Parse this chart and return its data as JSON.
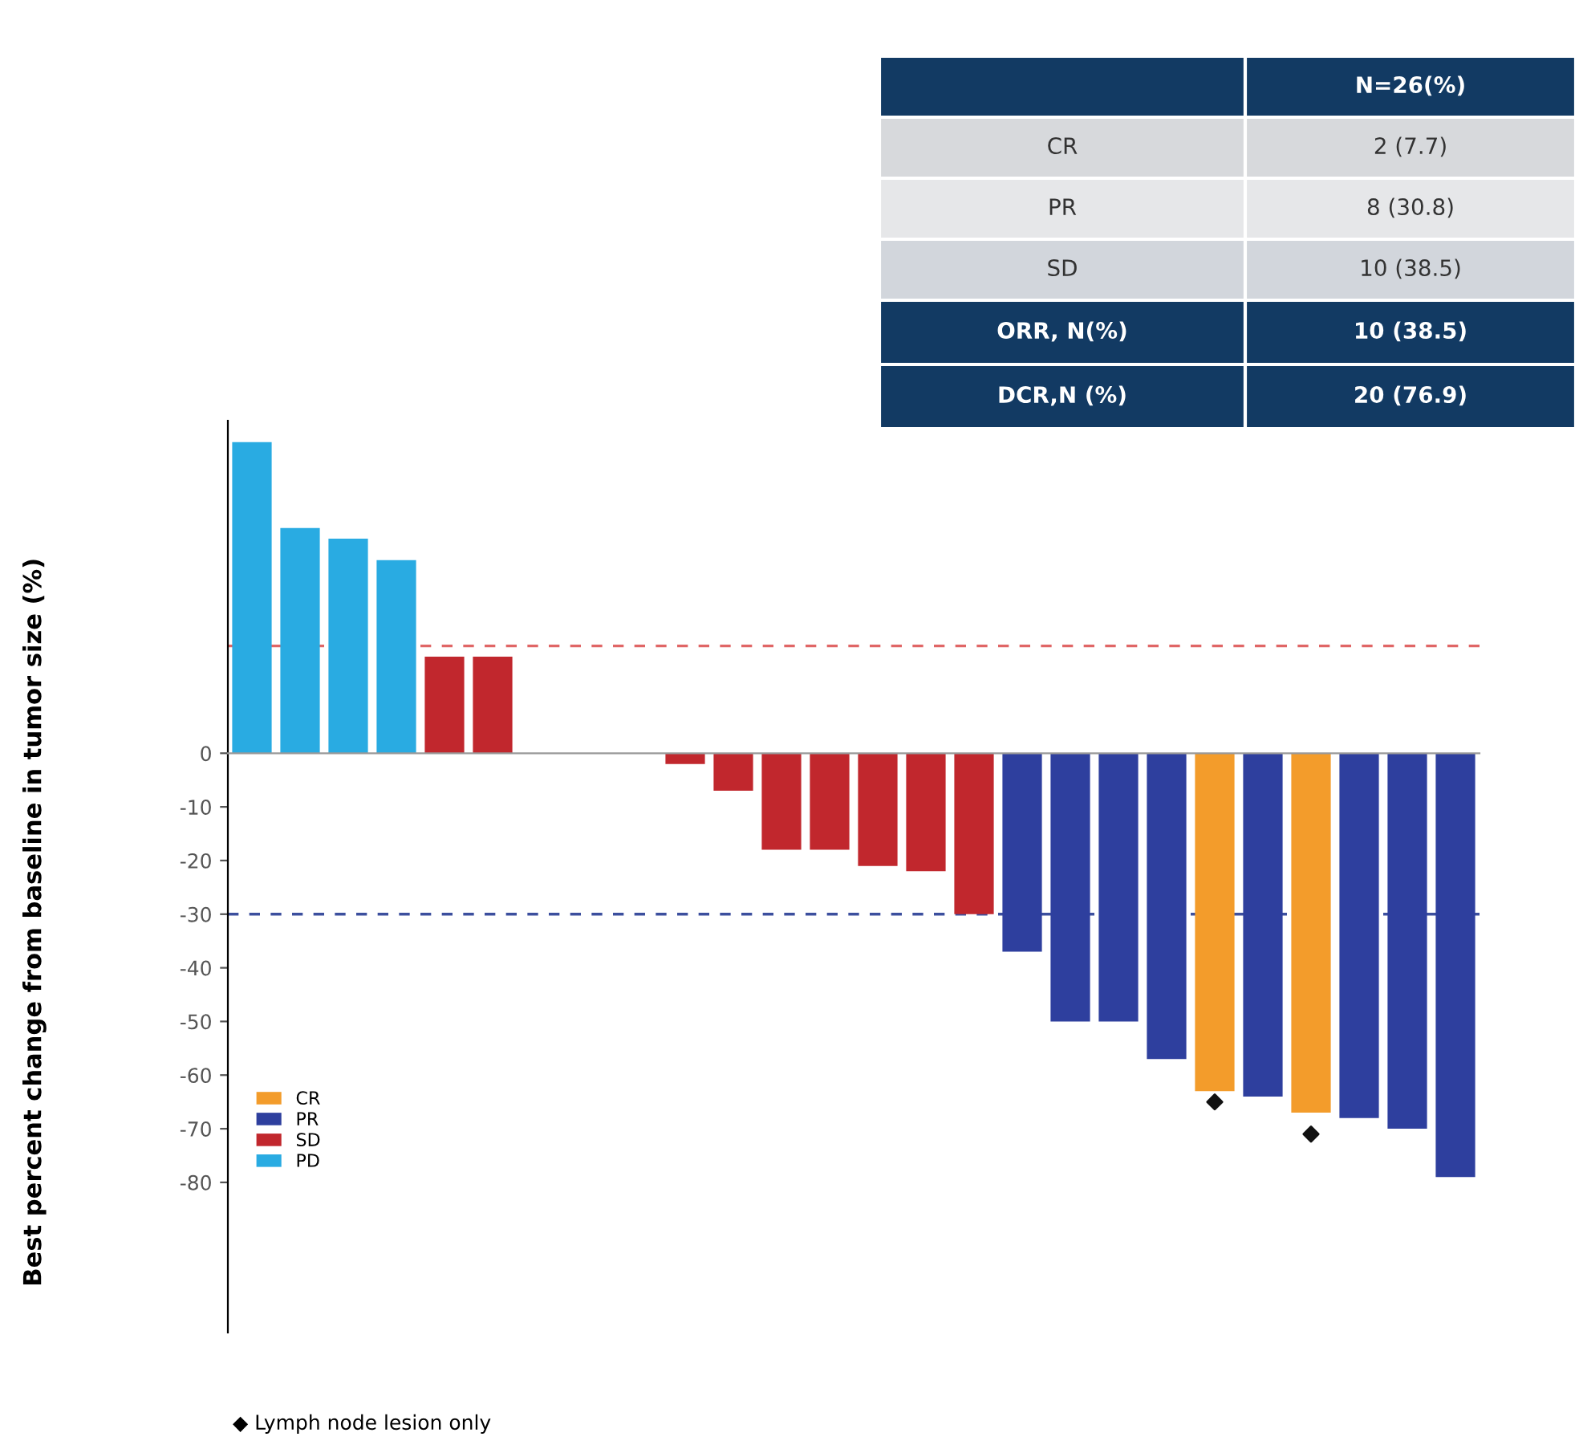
{
  "chart_data": [
    {
      "type": "bar",
      "ylabel": "Best percent change from baseline in tumor size (%)",
      "categories": [
        null,
        null,
        null,
        null,
        null,
        null,
        null,
        null,
        null,
        null,
        null,
        null,
        null,
        null,
        null,
        null,
        null,
        null,
        null,
        null,
        null,
        null,
        null,
        null,
        null,
        null
      ],
      "series": [
        {
          "name": "CR",
          "color": "#f39c2b",
          "values": [
            null,
            null,
            null,
            null,
            null,
            null,
            null,
            null,
            null,
            null,
            null,
            null,
            null,
            null,
            null,
            null,
            null,
            null,
            null,
            null,
            -63,
            null,
            -67,
            null,
            null,
            null
          ]
        },
        {
          "name": "PR",
          "color": "#2e3f9e",
          "values": [
            null,
            null,
            null,
            null,
            null,
            null,
            null,
            null,
            null,
            null,
            null,
            null,
            null,
            null,
            null,
            null,
            -37,
            -50,
            -50,
            -57,
            null,
            -64,
            null,
            -68,
            -70,
            -79
          ]
        },
        {
          "name": "SD",
          "color": "#c1272d",
          "values": [
            null,
            null,
            null,
            null,
            18,
            18,
            null,
            null,
            null,
            -2,
            -7,
            -18,
            -18,
            -21,
            -22,
            -30,
            null,
            null,
            null,
            null,
            null,
            null,
            null,
            null,
            null,
            null
          ]
        },
        {
          "name": "PD",
          "color": "#29abe2",
          "values": [
            58,
            42,
            40,
            36,
            null,
            null,
            null,
            null,
            null,
            null,
            null,
            null,
            null,
            null,
            null,
            null,
            null,
            null,
            null,
            null,
            null,
            null,
            null,
            null,
            null,
            null
          ]
        },
        {
          "type": "scatter",
          "color": "#111111",
          "marker": "diamond",
          "values": [
            null,
            null,
            null,
            null,
            null,
            null,
            null,
            null,
            null,
            null,
            null,
            null,
            null,
            null,
            null,
            null,
            null,
            null,
            null,
            null,
            -65,
            null,
            -71,
            null,
            null,
            null
          ]
        }
      ],
      "ylim": [
        -108,
        62
      ],
      "yticks": [
        0,
        -10,
        -20,
        -30,
        -40,
        -50,
        -60,
        -70,
        -80
      ],
      "ref_lines": [
        {
          "axis": "y",
          "value": 20,
          "color": "#e06666",
          "line_style": "dashed"
        },
        {
          "axis": "y",
          "value": -30,
          "color": "#3c4f9e",
          "line_style": "dashed"
        }
      ],
      "legend": "bottom left",
      "annotations": [
        "◆ Lymph node lesion only"
      ]
    },
    {
      "type": "other",
      "categories": [
        null,
        "CR",
        "PR",
        "SD",
        "ORR, N(%)",
        "DCR,N (%)"
      ],
      "annotations": [
        "N=26(%)",
        "2 (7.7)",
        "8 (30.8)",
        "10 (38.5)",
        "10 (38.5)",
        "20 (76.9)"
      ]
    }
  ]
}
